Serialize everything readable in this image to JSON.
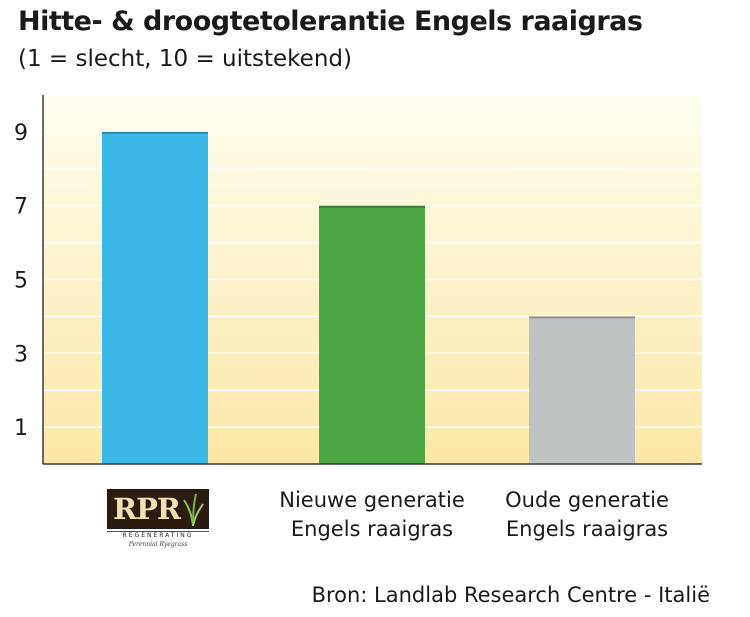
{
  "title": "Hitte- & droogtetolerantie Engels raaigras",
  "subtitle": "(1 = slecht, 10 = uitstekend)",
  "source": "Bron: Landlab Research Centre - Italië",
  "logo": {
    "mark": "RPR",
    "tagline": "REGENERATING",
    "subline": "Perennial Ryegrass"
  },
  "chart_data": {
    "type": "bar",
    "categories": [
      "RPR Regenerating Perennial Ryegrass",
      "Nieuwe generatie Engels raaigras",
      "Oude generatie Engels raaigras"
    ],
    "category_lines": [
      [],
      [
        "Nieuwe generatie",
        "Engels raaigras"
      ],
      [
        "Oude generatie",
        "Engels raaigras"
      ]
    ],
    "values": [
      9,
      7,
      4
    ],
    "bar_colors": [
      "#3bb8e8",
      "#4ea744",
      "#c0c3c3"
    ],
    "yticks": [
      1,
      3,
      5,
      7,
      9
    ],
    "ylim": [
      0,
      10
    ],
    "grid": true,
    "background_gradient": [
      "#fefdf0",
      "#fbe8a6"
    ]
  }
}
